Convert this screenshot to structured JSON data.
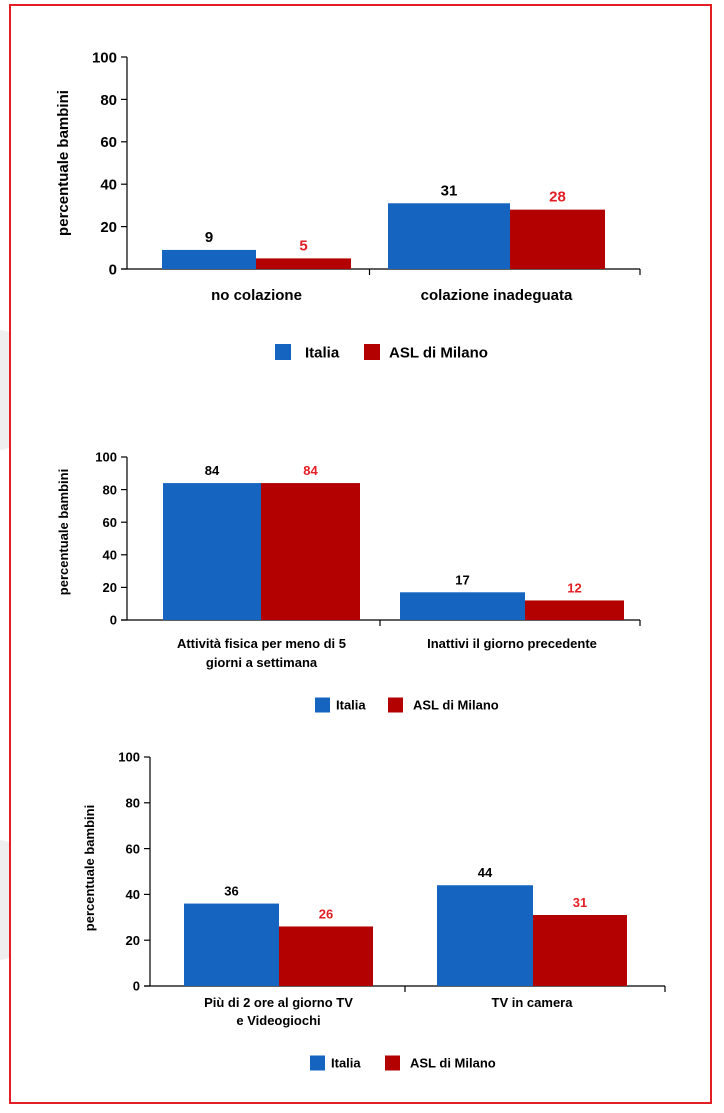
{
  "colors": {
    "frame": "#e31e24",
    "italia": "#1565c0",
    "asl": "#b30000",
    "italia_label": "#000000",
    "asl_label": "#e31e24"
  },
  "chart_data": [
    {
      "type": "bar",
      "ylabel": "percentuale bambini",
      "ylim": [
        0,
        100
      ],
      "yticks": [
        0,
        20,
        40,
        60,
        80,
        100
      ],
      "categories": [
        [
          "no colazione"
        ],
        [
          "colazione inadeguata"
        ]
      ],
      "series": [
        {
          "name": "Italia",
          "values": [
            9,
            31
          ]
        },
        {
          "name": "ASL di Milano",
          "values": [
            5,
            28
          ]
        }
      ],
      "legend": "bottom-center",
      "grid": false
    },
    {
      "type": "bar",
      "ylabel": "percentuale bambini",
      "ylim": [
        0,
        100
      ],
      "yticks": [
        0,
        20,
        40,
        60,
        80,
        100
      ],
      "categories": [
        [
          "Attività fisica per meno di 5",
          "giorni a settimana"
        ],
        [
          "Inattivi il giorno precedente"
        ]
      ],
      "series": [
        {
          "name": "Italia",
          "values": [
            84,
            17
          ]
        },
        {
          "name": "ASL di Milano",
          "values": [
            84,
            12
          ]
        }
      ],
      "legend": "bottom-center",
      "grid": false
    },
    {
      "type": "bar",
      "ylabel": "percentuale bambini",
      "ylim": [
        0,
        100
      ],
      "yticks": [
        0,
        20,
        40,
        60,
        80,
        100
      ],
      "categories": [
        [
          "Più di 2 ore al giorno TV",
          "e Videogiochi"
        ],
        [
          "TV in camera"
        ]
      ],
      "series": [
        {
          "name": "Italia",
          "values": [
            36,
            44
          ]
        },
        {
          "name": "ASL di Milano",
          "values": [
            26,
            31
          ]
        }
      ],
      "legend": "bottom-center",
      "grid": false
    }
  ]
}
